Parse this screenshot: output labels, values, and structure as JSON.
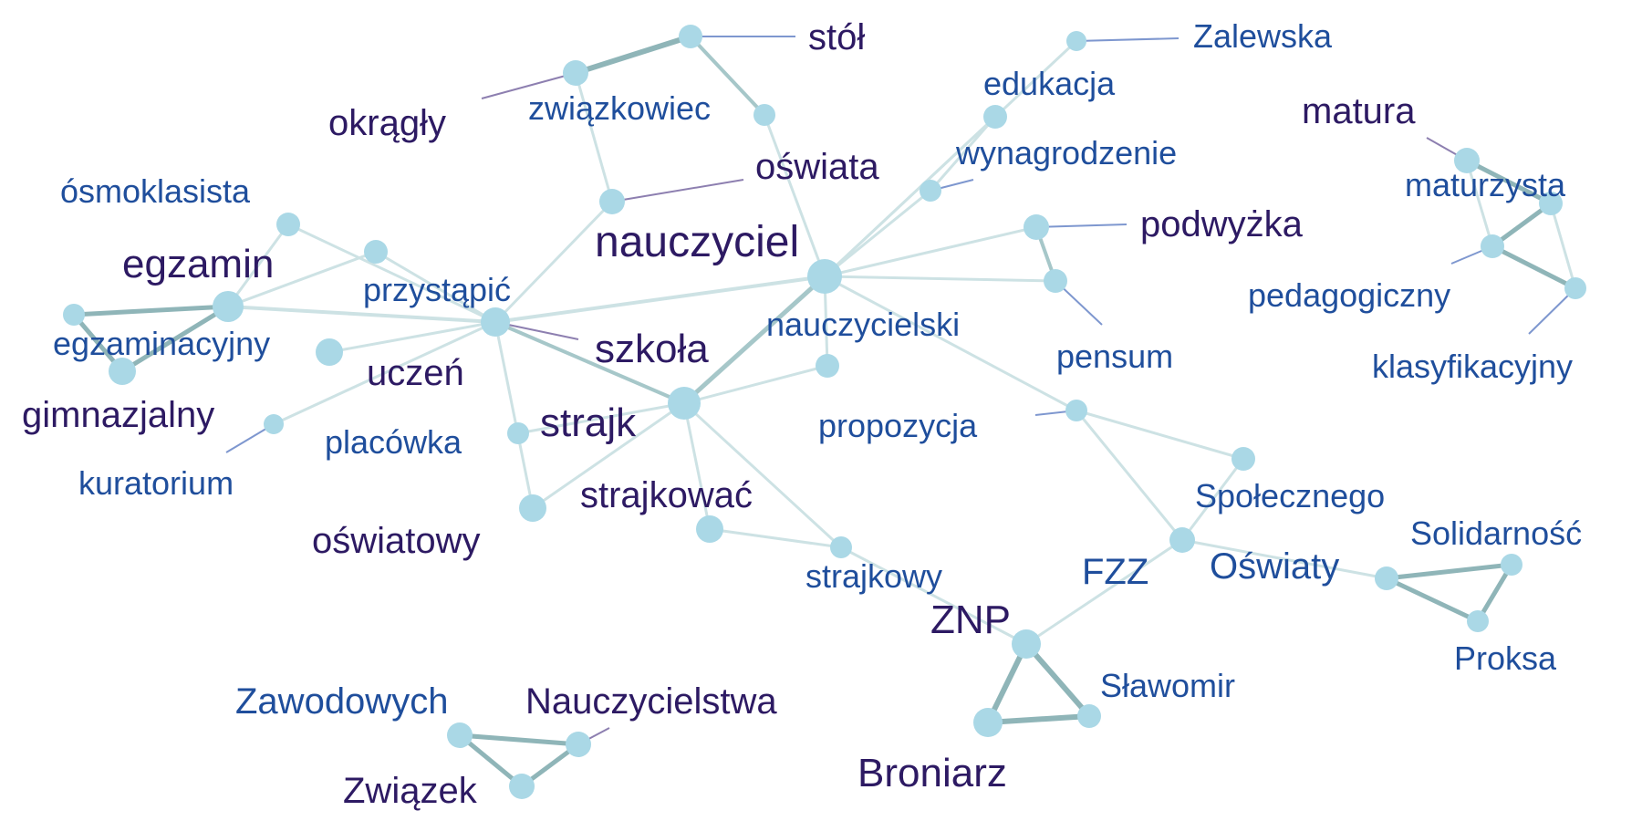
{
  "colors": {
    "node": "#aad8e6",
    "edge_light": "#cde2e4",
    "edge_mid": "#a6c7c9",
    "edge_dark": "#8fb5b8",
    "label_blue": "#1f4e9c",
    "label_dark": "#2d1a63",
    "leader_blue": "#7e97cf",
    "leader_purple": "#8d7fb0"
  },
  "labels": {
    "stol": "stół",
    "okragly": "okrągły",
    "zwiazkowiec": "związkowiec",
    "oswiata": "oświata",
    "nauczyciel": "nauczyciel",
    "edukacja": "edukacja",
    "zalewska": "Zalewska",
    "wynagrodzenie": "wynagrodzenie",
    "podwyzka": "podwyżka",
    "matura": "matura",
    "maturzysta": "maturzysta",
    "pedagogiczny": "pedagogiczny",
    "klasyfikacyjny": "klasyfikacyjny",
    "osmoklasista": "ósmoklasista",
    "egzamin": "egzamin",
    "przystapic": "przystąpić",
    "egzaminacyjny": "egzaminacyjny",
    "szkola": "szkoła",
    "uczen": "uczeń",
    "nauczycielski": "nauczycielski",
    "pensum": "pensum",
    "gimnazjalny": "gimnazjalny",
    "kuratorium": "kuratorium",
    "placowka": "placówka",
    "strajk": "strajk",
    "propozycja": "propozycja",
    "strajkowac": "strajkować",
    "oswiatowy": "oświatowy",
    "spolecznego": "Społecznego",
    "solidarnosc": "Solidarność",
    "oswiaty": "Oświaty",
    "strajkowy": "strajkowy",
    "fzz": "FZZ",
    "znp": "ZNP",
    "proksa": "Proksa",
    "slawomir": "Sławomir",
    "zawodowych": "Zawodowych",
    "nauczycielstwa": "Nauczycielstwa",
    "broniarz": "Broniarz",
    "zwiazek": "Związek"
  }
}
